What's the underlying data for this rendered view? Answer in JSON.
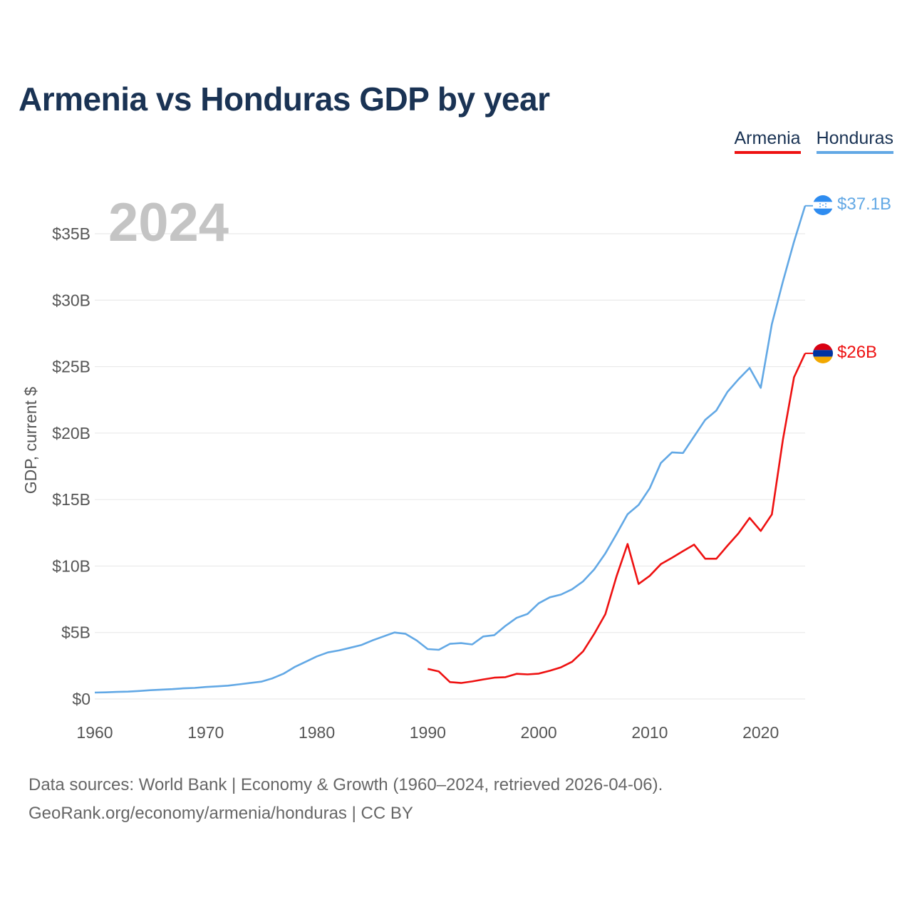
{
  "title": "Armenia vs Honduras GDP by year",
  "year_display": "2024",
  "legend": [
    {
      "name": "Armenia",
      "color": "#ee1111"
    },
    {
      "name": "Honduras",
      "color": "#62a8e5"
    }
  ],
  "footer": {
    "line1": "Data sources: World Bank | Economy & Growth (1960–2024, retrieved 2026-04-06).",
    "line2": "GeoRank.org/economy/armenia/honduras | CC BY"
  },
  "chart_data": {
    "type": "line",
    "title": "Armenia vs Honduras GDP by year",
    "xlabel": "",
    "ylabel": "GDP, current $",
    "xlim": [
      1960,
      2024
    ],
    "ylim": [
      0,
      37.5
    ],
    "y_unit": "billions of current US$",
    "yticks": [
      0,
      5,
      10,
      15,
      20,
      25,
      30,
      35
    ],
    "ytick_labels": [
      "$0",
      "$5B",
      "$10B",
      "$15B",
      "$20B",
      "$25B",
      "$30B",
      "$35B"
    ],
    "xticks": [
      1960,
      1970,
      1980,
      1990,
      2000,
      2010,
      2020
    ],
    "xtick_labels": [
      "1960",
      "1970",
      "1980",
      "1990",
      "2000",
      "2010",
      "2020"
    ],
    "grid": true,
    "legend_position": "top-right",
    "series": [
      {
        "name": "Honduras",
        "color": "#62a8e5",
        "end_label": "$37.1B",
        "x": [
          1960,
          1961,
          1962,
          1963,
          1964,
          1965,
          1966,
          1967,
          1968,
          1969,
          1970,
          1971,
          1972,
          1973,
          1974,
          1975,
          1976,
          1977,
          1978,
          1979,
          1980,
          1981,
          1982,
          1983,
          1984,
          1985,
          1986,
          1987,
          1988,
          1989,
          1990,
          1991,
          1992,
          1993,
          1994,
          1995,
          1996,
          1997,
          1998,
          1999,
          2000,
          2001,
          2002,
          2003,
          2004,
          2005,
          2006,
          2007,
          2008,
          2009,
          2010,
          2011,
          2012,
          2013,
          2014,
          2015,
          2016,
          2017,
          2018,
          2019,
          2020,
          2021,
          2022,
          2023,
          2024
        ],
        "values": [
          0.48,
          0.5,
          0.53,
          0.55,
          0.6,
          0.66,
          0.7,
          0.74,
          0.8,
          0.83,
          0.9,
          0.95,
          1.0,
          1.1,
          1.2,
          1.3,
          1.55,
          1.9,
          2.4,
          2.8,
          3.2,
          3.5,
          3.65,
          3.85,
          4.05,
          4.4,
          4.7,
          5.0,
          4.9,
          4.4,
          3.75,
          3.7,
          4.15,
          4.2,
          4.1,
          4.7,
          4.8,
          5.5,
          6.1,
          6.4,
          7.2,
          7.65,
          7.85,
          8.25,
          8.85,
          9.75,
          10.95,
          12.4,
          13.9,
          14.6,
          15.85,
          17.75,
          18.55,
          18.5,
          19.75,
          21.0,
          21.7,
          23.1,
          24.05,
          24.9,
          23.4,
          28.2,
          31.4,
          34.4,
          37.1
        ]
      },
      {
        "name": "Armenia",
        "color": "#ee1111",
        "end_label": "$26B",
        "x": [
          1990,
          1991,
          1992,
          1993,
          1994,
          1995,
          1996,
          1997,
          1998,
          1999,
          2000,
          2001,
          2002,
          2003,
          2004,
          2005,
          2006,
          2007,
          2008,
          2009,
          2010,
          2011,
          2012,
          2013,
          2014,
          2015,
          2016,
          2017,
          2018,
          2019,
          2020,
          2021,
          2022,
          2023,
          2024
        ],
        "values": [
          2.26,
          2.07,
          1.27,
          1.2,
          1.32,
          1.47,
          1.6,
          1.64,
          1.89,
          1.85,
          1.91,
          2.12,
          2.38,
          2.8,
          3.58,
          4.9,
          6.38,
          9.21,
          11.66,
          8.65,
          9.26,
          10.14,
          10.62,
          11.12,
          11.61,
          10.55,
          10.55,
          11.53,
          12.46,
          13.62,
          12.64,
          13.88,
          19.5,
          24.2,
          26.0
        ]
      }
    ]
  }
}
